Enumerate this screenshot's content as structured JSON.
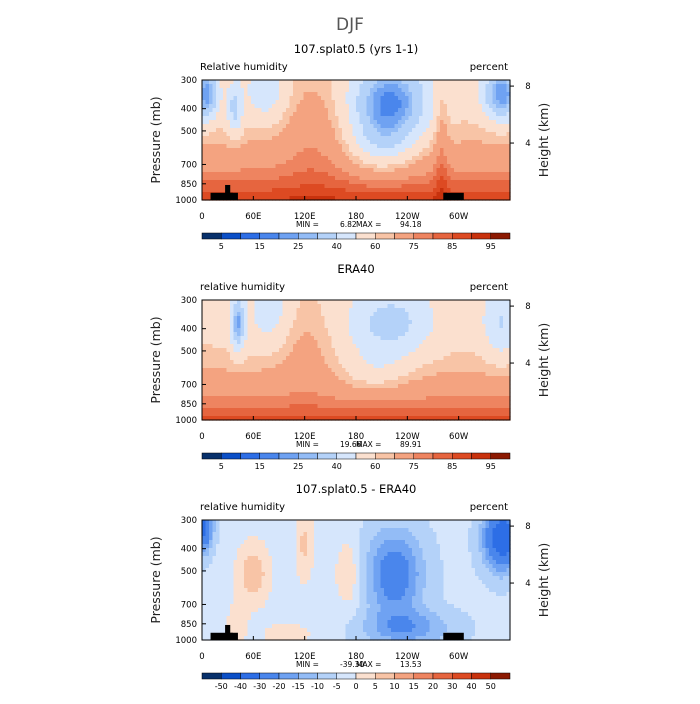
{
  "figure": {
    "title": "DJF"
  },
  "chart_data": [
    {
      "type": "heatmap",
      "title": "107.splat0.5 (yrs 1-1)",
      "left_label": "Relative humidity",
      "right_label": "percent",
      "ylabel": "Pressure (mb)",
      "y2label": "Height (km)",
      "xticks": [
        "0",
        "60E",
        "120E",
        "180",
        "120W",
        "60W"
      ],
      "xtick_values": [
        0,
        60,
        120,
        180,
        240,
        300
      ],
      "xlim": [
        0,
        360
      ],
      "yticks": [
        "300",
        "400",
        "500",
        "700",
        "850",
        "1000"
      ],
      "ytick_values": [
        300,
        400,
        500,
        700,
        850,
        1000
      ],
      "ylim": [
        1000,
        300
      ],
      "y2ticks": [
        "8",
        "4"
      ],
      "y2tick_values": [
        8,
        4
      ],
      "min_text": "MIN =",
      "min": "6.82",
      "max_text": "MAX =",
      "max": "94.18",
      "field": "model",
      "topography": true,
      "colorbar": {
        "labels": [
          "5",
          "15",
          "25",
          "40",
          "60",
          "75",
          "85",
          "95"
        ],
        "colors": [
          "#08306b",
          "#0b4fc7",
          "#2d6ee6",
          "#4a86ec",
          "#6fa2f2",
          "#93bcf6",
          "#b4d2f9",
          "#d6e6fc",
          "#fbe0cf",
          "#f8c4a6",
          "#f4a380",
          "#ee8460",
          "#e6653f",
          "#dd4a22",
          "#c8320d",
          "#8c1a02"
        ]
      }
    },
    {
      "type": "heatmap",
      "title": "ERA40",
      "left_label": "relative humidity",
      "right_label": "percent",
      "ylabel": "Pressure (mb)",
      "y2label": "Height (km)",
      "xticks": [
        "0",
        "60E",
        "120E",
        "180",
        "120W",
        "60W"
      ],
      "xtick_values": [
        0,
        60,
        120,
        180,
        240,
        300
      ],
      "xlim": [
        0,
        360
      ],
      "yticks": [
        "300",
        "400",
        "500",
        "700",
        "850",
        "1000"
      ],
      "ytick_values": [
        300,
        400,
        500,
        700,
        850,
        1000
      ],
      "ylim": [
        1000,
        300
      ],
      "y2ticks": [
        "8",
        "4"
      ],
      "y2tick_values": [
        8,
        4
      ],
      "min_text": "MIN =",
      "min": "19.66",
      "max_text": "MAX =",
      "max": "89.91",
      "field": "obs",
      "topography": false,
      "colorbar": {
        "labels": [
          "5",
          "15",
          "25",
          "40",
          "60",
          "75",
          "85",
          "95"
        ],
        "colors": [
          "#08306b",
          "#0b4fc7",
          "#2d6ee6",
          "#4a86ec",
          "#6fa2f2",
          "#93bcf6",
          "#b4d2f9",
          "#d6e6fc",
          "#fbe0cf",
          "#f8c4a6",
          "#f4a380",
          "#ee8460",
          "#e6653f",
          "#dd4a22",
          "#c8320d",
          "#8c1a02"
        ]
      }
    },
    {
      "type": "heatmap",
      "title": "107.splat0.5 - ERA40",
      "left_label": "relative humidity",
      "right_label": "percent",
      "ylabel": "Pressure (mb)",
      "y2label": "Height (km)",
      "xticks": [
        "0",
        "60E",
        "120E",
        "180",
        "120W",
        "60W"
      ],
      "xtick_values": [
        0,
        60,
        120,
        180,
        240,
        300
      ],
      "xlim": [
        0,
        360
      ],
      "yticks": [
        "300",
        "400",
        "500",
        "700",
        "850",
        "1000"
      ],
      "ytick_values": [
        300,
        400,
        500,
        700,
        850,
        1000
      ],
      "ylim": [
        1000,
        300
      ],
      "y2ticks": [
        "8",
        "4"
      ],
      "y2tick_values": [
        8,
        4
      ],
      "min_text": "MIN =",
      "min": "-39.30",
      "max_text": "MAX =",
      "max": "13.53",
      "field": "diff",
      "topography": true,
      "colorbar": {
        "labels": [
          "-50",
          "-40",
          "-30",
          "-20",
          "-15",
          "-10",
          "-5",
          "0",
          "5",
          "10",
          "15",
          "20",
          "30",
          "40",
          "50"
        ],
        "colors": [
          "#08306b",
          "#0b4fc7",
          "#2d6ee6",
          "#4a86ec",
          "#6fa2f2",
          "#93bcf6",
          "#b4d2f9",
          "#d6e6fc",
          "#fbe0cf",
          "#f8c4a6",
          "#f4a380",
          "#ee8460",
          "#e6653f",
          "#dd4a22",
          "#c8320d",
          "#8c1a02"
        ]
      }
    }
  ]
}
